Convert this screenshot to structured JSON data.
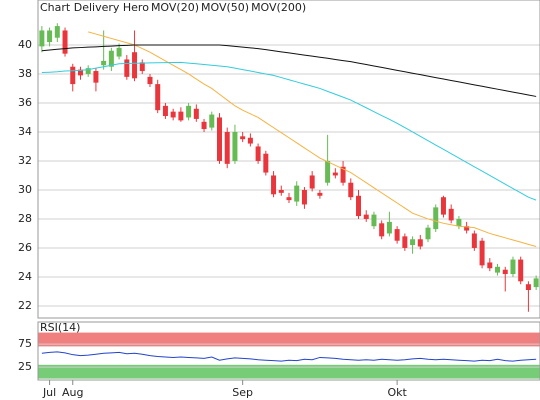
{
  "chart_data": {
    "type": "candlestick",
    "title": "Chart Delivery Hero",
    "title_color": "#e06030",
    "up_color": "#66bb55",
    "down_color": "#e8363c",
    "categories": [
      null,
      "Jul",
      null,
      null,
      "Aug",
      null,
      null,
      null,
      null,
      null,
      null,
      null,
      null,
      null,
      null,
      null,
      null,
      null,
      null,
      null,
      null,
      null,
      null,
      null,
      null,
      null,
      "Sep",
      null,
      null,
      null,
      null,
      null,
      null,
      null,
      null,
      null,
      null,
      null,
      null,
      null,
      null,
      null,
      null,
      null,
      null,
      null,
      "Okt",
      null,
      null,
      null,
      null,
      null,
      null,
      null,
      null,
      null,
      null,
      null,
      null,
      null,
      null,
      null,
      null,
      null,
      null
    ],
    "open": [
      39.9,
      40.2,
      40.5,
      41.0,
      38.5,
      38.3,
      38.0,
      38.2,
      38.6,
      38.5,
      39.2,
      39.0,
      39.5,
      38.8,
      37.8,
      37.3,
      35.8,
      35.4,
      35.4,
      35.0,
      35.6,
      34.7,
      34.3,
      35.0,
      34.0,
      32.0,
      33.7,
      33.6,
      33.0,
      32.5,
      31.0,
      30.0,
      29.5,
      29.2,
      30.0,
      31.0,
      29.8,
      30.5,
      31.2,
      31.6,
      30.5,
      29.6,
      28.3,
      27.5,
      27.7,
      27.0,
      27.3,
      26.8,
      26.2,
      26.6,
      26.6,
      27.3,
      29.5,
      28.7,
      27.5,
      27.5,
      27.0,
      26.5,
      25.0,
      24.3,
      24.5,
      24.2,
      25.2,
      23.5,
      23.3
    ],
    "high": [
      41.3,
      41.2,
      41.5,
      41.2,
      38.7,
      38.5,
      38.6,
      38.4,
      41.0,
      39.8,
      40.1,
      39.3,
      41.0,
      39.0,
      38.0,
      37.6,
      36.0,
      35.6,
      35.7,
      36.0,
      35.9,
      34.9,
      35.4,
      35.3,
      34.3,
      34.5,
      34.0,
      33.9,
      33.2,
      32.7,
      31.3,
      30.3,
      29.8,
      30.6,
      30.2,
      31.3,
      30.0,
      33.8,
      31.5,
      32.0,
      30.8,
      30.0,
      28.6,
      28.5,
      27.9,
      28.5,
      27.5,
      27.0,
      26.8,
      26.9,
      27.6,
      29.0,
      29.6,
      29.0,
      28.2,
      27.8,
      27.2,
      26.7,
      25.3,
      24.9,
      24.7,
      25.4,
      25.4,
      23.7,
      24.1
    ],
    "low": [
      39.5,
      39.9,
      40.2,
      39.2,
      36.8,
      37.6,
      37.8,
      36.8,
      38.3,
      38.2,
      39.0,
      37.6,
      37.5,
      38.0,
      37.1,
      35.3,
      34.9,
      34.8,
      34.7,
      34.8,
      34.7,
      34.0,
      34.1,
      31.8,
      31.5,
      31.8,
      33.3,
      33.0,
      31.8,
      31.0,
      29.5,
      29.6,
      29.1,
      28.9,
      28.7,
      29.9,
      29.4,
      30.3,
      30.8,
      30.3,
      29.3,
      28.0,
      27.8,
      27.3,
      26.6,
      26.8,
      26.3,
      25.8,
      25.6,
      25.9,
      26.4,
      27.1,
      28.1,
      27.7,
      27.3,
      27.0,
      25.8,
      24.6,
      24.4,
      24.1,
      23.0,
      24.0,
      23.5,
      21.6,
      23.1
    ],
    "close": [
      41.0,
      41.0,
      41.3,
      39.4,
      37.3,
      37.9,
      38.4,
      37.4,
      38.9,
      39.6,
      39.8,
      37.8,
      37.7,
      38.2,
      37.3,
      35.5,
      35.1,
      35.0,
      34.8,
      35.8,
      34.9,
      34.2,
      35.2,
      32.0,
      31.8,
      34.0,
      33.5,
      33.2,
      32.0,
      31.2,
      29.7,
      29.8,
      29.3,
      30.3,
      29.0,
      30.1,
      29.6,
      32.0,
      31.0,
      30.5,
      29.5,
      28.2,
      28.0,
      28.3,
      26.8,
      27.8,
      26.5,
      26.0,
      26.6,
      26.1,
      27.4,
      28.8,
      28.3,
      27.9,
      28.0,
      27.2,
      26.0,
      24.8,
      24.6,
      24.7,
      24.2,
      25.2,
      23.7,
      23.1,
      23.9
    ],
    "series": [
      {
        "name": "MOV(20)",
        "color": "#f5b342",
        "values": [
          null,
          null,
          null,
          null,
          null,
          null,
          40.9,
          40.75,
          40.6,
          40.45,
          40.3,
          40.15,
          40.0,
          39.75,
          39.5,
          39.2,
          38.9,
          38.6,
          38.3,
          38.0,
          37.65,
          37.3,
          37.0,
          36.6,
          36.2,
          35.8,
          35.5,
          35.25,
          35.0,
          34.65,
          34.3,
          33.95,
          33.6,
          33.25,
          32.9,
          32.55,
          32.2,
          31.95,
          31.7,
          31.45,
          31.2,
          30.85,
          30.5,
          30.15,
          29.8,
          29.45,
          29.1,
          28.75,
          28.4,
          28.2,
          28.0,
          27.85,
          27.7,
          27.6,
          27.5,
          27.45,
          27.4,
          27.2,
          27.0,
          26.85,
          26.7,
          26.55,
          26.4,
          26.25,
          26.1
        ]
      },
      {
        "name": "MOV(50)",
        "color": "#33ccdd",
        "values": [
          38.1,
          38.12,
          38.15,
          38.2,
          38.22,
          38.25,
          38.3,
          38.4,
          38.5,
          38.6,
          38.7,
          38.72,
          38.74,
          38.75,
          38.76,
          38.77,
          38.78,
          38.79,
          38.8,
          38.75,
          38.7,
          38.65,
          38.6,
          38.55,
          38.5,
          38.4,
          38.3,
          38.2,
          38.1,
          38.0,
          37.9,
          37.75,
          37.6,
          37.45,
          37.3,
          37.15,
          37.0,
          36.8,
          36.6,
          36.4,
          36.2,
          35.93,
          35.67,
          35.4,
          35.13,
          34.87,
          34.6,
          34.3,
          34.0,
          33.7,
          33.4,
          33.1,
          32.8,
          32.5,
          32.2,
          31.9,
          31.6,
          31.3,
          31.0,
          30.7,
          30.4,
          30.1,
          29.8,
          29.5,
          29.3
        ]
      },
      {
        "name": "MOV(200)",
        "color": "#111111",
        "values": [
          39.6,
          39.65,
          39.7,
          39.75,
          39.8,
          39.82,
          39.85,
          39.87,
          39.9,
          39.92,
          39.95,
          39.97,
          40.0,
          40.0,
          40.0,
          40.0,
          40.0,
          40.0,
          40.0,
          40.0,
          40.0,
          40.0,
          40.0,
          40.0,
          39.95,
          39.9,
          39.85,
          39.8,
          39.75,
          39.68,
          39.6,
          39.52,
          39.45,
          39.38,
          39.3,
          39.23,
          39.15,
          39.08,
          39.0,
          38.92,
          38.85,
          38.75,
          38.65,
          38.55,
          38.45,
          38.35,
          38.25,
          38.15,
          38.05,
          37.95,
          37.85,
          37.75,
          37.65,
          37.55,
          37.45,
          37.35,
          37.25,
          37.15,
          37.05,
          36.95,
          36.85,
          36.75,
          36.65,
          36.55,
          36.45
        ]
      }
    ],
    "ylim": [
      21.17,
      43.1
    ],
    "yticks": [
      22,
      24,
      26,
      28,
      30,
      32,
      34,
      36,
      38,
      40
    ],
    "grid": true,
    "rsi": {
      "name": "RSI(14)",
      "color": "#2244cc",
      "values": [
        55,
        57,
        58,
        56,
        52,
        50,
        51,
        53,
        55,
        56,
        57,
        54,
        55,
        53,
        50,
        48,
        47,
        46,
        47,
        46,
        45,
        44,
        47,
        40,
        43,
        45,
        44,
        43,
        41,
        40,
        39,
        38,
        40,
        39,
        42,
        41,
        46,
        45,
        44,
        42,
        41,
        40,
        41,
        40,
        42,
        41,
        40,
        41,
        43,
        44,
        42,
        41,
        42,
        41,
        40,
        39,
        38,
        40,
        39,
        42,
        39,
        38,
        40,
        41,
        42
      ],
      "ylim": [
        -3,
        123
      ],
      "yticks": [
        25,
        75
      ],
      "overbought": [
        70,
        100
      ],
      "oversold": [
        0,
        30
      ],
      "overbought_color": "#f08080",
      "oversold_color": "#77cc77"
    }
  }
}
